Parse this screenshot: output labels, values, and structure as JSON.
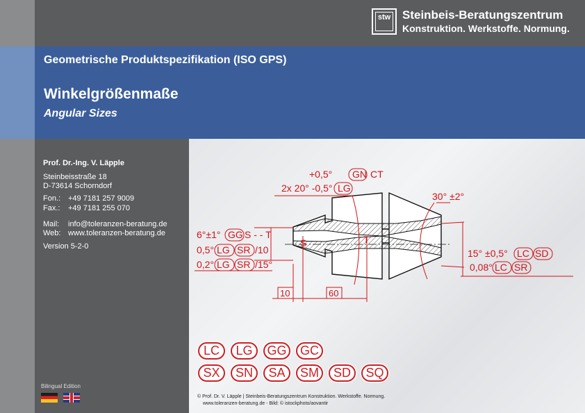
{
  "header": {
    "logo_mark": "stw",
    "brand_line1": "Steinbeis-Beratungszentrum",
    "brand_line2": "Konstruktion. Werkstoffe. Normung."
  },
  "banner": {
    "subtitle": "Geometrische Produktspezifikation (ISO GPS)",
    "title": "Winkelgrößenmaße",
    "title_en": "Angular Sizes"
  },
  "author": {
    "name": "Prof. Dr.-Ing. V. Läpple",
    "street": "Steinbeisstraße 18",
    "city": "D-73614 Schorndorf",
    "phone_label": "Fon.:",
    "phone": "+49 7181 257 9009",
    "fax_label": "Fax.:",
    "fax": "+49 7181 255 070",
    "mail_label": "Mail:",
    "mail": "info@toleranzen-beratung.de",
    "web_label": "Web:",
    "web": "www.toleranzen-beratung.de",
    "version": "Version 5-2-0"
  },
  "edition": {
    "label": "Bilingual Edition",
    "flags": [
      "de-flag",
      "uk-flag"
    ]
  },
  "drawing": {
    "ann_gn": "+0,5°",
    "gn": "GN",
    "ct": "CT",
    "ann_lg_top": "2x 20° -0,5°",
    "lg": "LG",
    "ann_30": "30° ±2°",
    "ann_6": "6°±1°",
    "gg": "GG",
    "s_to_t": "S - - T",
    "ann_05": "0,5°",
    "sr": "SR",
    "ann_05_suffix": "/10",
    "ann_02": "0,2°",
    "ann_02_suffix": "/15°",
    "ann_15": "15° ±0,5°",
    "lc": "LC",
    "sd": "SD",
    "ann_008": "0,08°",
    "s": "S",
    "t": "T",
    "dim_10": "10",
    "dim_60": "60"
  },
  "modifiers": {
    "row1": [
      "LC",
      "LG",
      "GG",
      "GC"
    ],
    "row2": [
      "SX",
      "SN",
      "SA",
      "SM",
      "SD",
      "SQ"
    ]
  },
  "footer": {
    "line1": "© Prof. Dr. V. Läpple | Steinbeis-Beratungszentrum Konstruktion. Werkstoffe. Normung.",
    "line2": "www.toleranzen-beratung.de - Bild: © istockphoto/aovantir"
  },
  "colors": {
    "accent_red": "#cc1f24",
    "banner_blue": "#3b5e9b",
    "panel_gray": "#5b5c5e"
  }
}
